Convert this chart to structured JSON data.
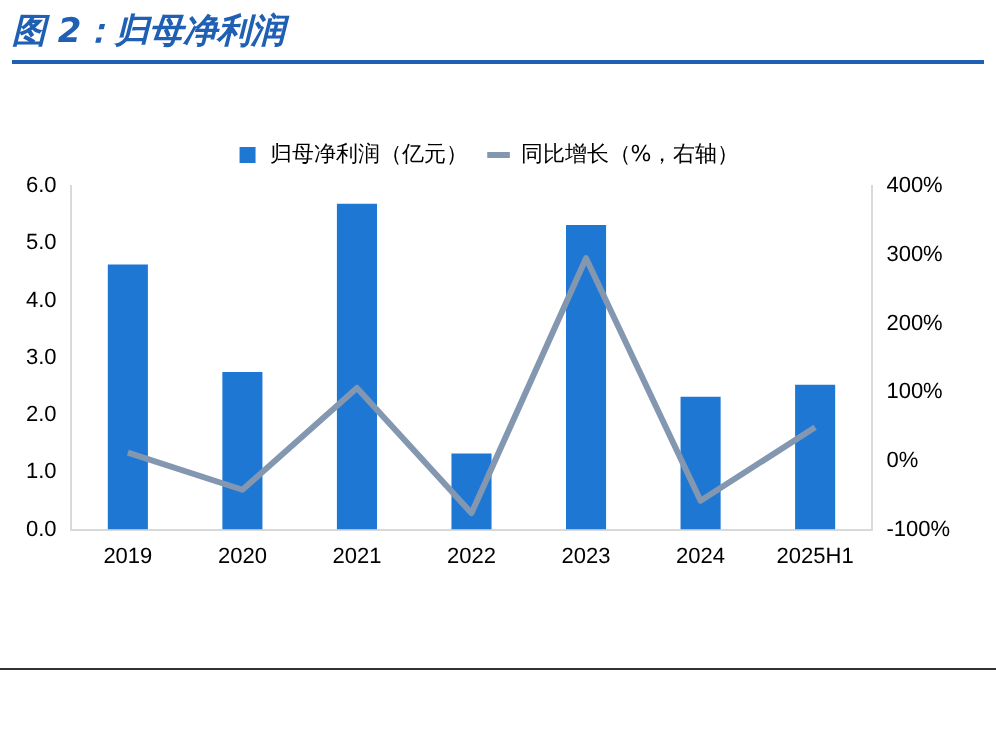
{
  "chart_data": {
    "type": "bar",
    "title": "图 2：归母净利润",
    "categories": [
      "2019",
      "2020",
      "2021",
      "2022",
      "2023",
      "2024",
      "2025H1"
    ],
    "series": [
      {
        "name": "归母净利润（亿元）",
        "color": "#1f77d4",
        "values": [
          4.63,
          2.75,
          5.69,
          1.33,
          5.32,
          2.32,
          2.53
        ]
      },
      {
        "name": "同比增长（%，右轴）",
        "type": "line",
        "axis": "y2",
        "color": "#8497b0",
        "values": [
          12,
          -42,
          106,
          -76,
          295,
          -58,
          49
        ]
      }
    ],
    "ylim": [
      0,
      6
    ],
    "yticks": [
      {
        "value": 0,
        "label": "0.0"
      },
      {
        "value": 1,
        "label": "1.0"
      },
      {
        "value": 2,
        "label": "2.0"
      },
      {
        "value": 3,
        "label": "3.0"
      },
      {
        "value": 4,
        "label": "4.0"
      },
      {
        "value": 5,
        "label": "5.0"
      },
      {
        "value": 6,
        "label": "6.0"
      }
    ],
    "y2lim": [
      -100,
      400
    ],
    "y2ticks": [
      {
        "value": -100,
        "label": "-100%"
      },
      {
        "value": 0,
        "label": "0%"
      },
      {
        "value": 100,
        "label": "100%"
      },
      {
        "value": 200,
        "label": "200%"
      },
      {
        "value": 300,
        "label": "300%"
      },
      {
        "value": 400,
        "label": "400%"
      }
    ],
    "grid": false,
    "legend": "top",
    "marker": "none",
    "line_style": "solid"
  }
}
